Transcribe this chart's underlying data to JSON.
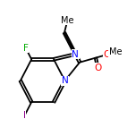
{
  "bg_color": "#ffffff",
  "bond_color": "#000000",
  "atom_colors": {
    "N": "#0000ff",
    "O": "#ff0000",
    "F": "#00aa00",
    "I": "#8b008b",
    "C": "#000000"
  },
  "figsize": [
    1.52,
    1.52
  ],
  "dpi": 100
}
